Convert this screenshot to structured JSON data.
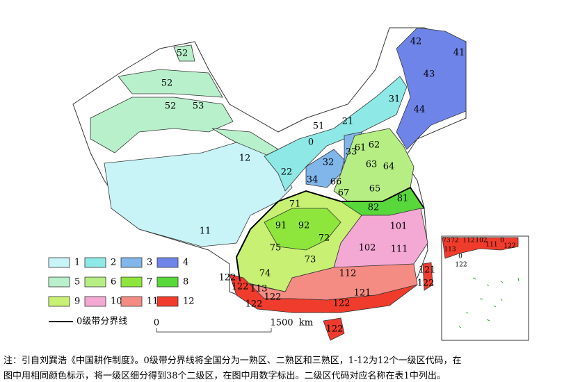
{
  "legend": {
    "items": [
      {
        "label": "1",
        "color": "#c8f4f8"
      },
      {
        "label": "2",
        "color": "#8ee8e6"
      },
      {
        "label": "3",
        "color": "#80b6ea"
      },
      {
        "label": "4",
        "color": "#6f84e8"
      },
      {
        "label": "5",
        "color": "#b8f0cc"
      },
      {
        "label": "6",
        "color": "#b6ee84"
      },
      {
        "label": "7",
        "color": "#8ee63c"
      },
      {
        "label": "8",
        "color": "#58d83a"
      },
      {
        "label": "9",
        "color": "#c8f072"
      },
      {
        "label": "10",
        "color": "#f4a8d4"
      },
      {
        "label": "11",
        "color": "#f48c84"
      },
      {
        "label": "12",
        "color": "#f03c2c"
      }
    ],
    "boundary_label": "0级带分界线"
  },
  "map_labels": [
    "52",
    "52",
    "53",
    "52",
    "12",
    "11",
    "22",
    "21",
    "0",
    "51",
    "31",
    "42",
    "41",
    "43",
    "44",
    "32",
    "33",
    "61",
    "62",
    "63",
    "64",
    "34",
    "66",
    "67",
    "65",
    "81",
    "82",
    "71",
    "91",
    "92",
    "72",
    "75",
    "73",
    "74",
    "101",
    "102",
    "111",
    "112",
    "121",
    "122",
    "121",
    "122",
    "122",
    "113",
    "122",
    "122",
    "122",
    "122"
  ],
  "inset_labels": [
    "73",
    "72",
    "112",
    "102",
    "111",
    "0",
    "122",
    "113",
    "0",
    "122"
  ],
  "scale_bar": {
    "start": "0",
    "end": "1500",
    "unit": "km"
  },
  "caption": [
    "注：引自刘巽浩《中国耕作制度》。0级带分界线将全国分为一熟区、二熟区和三熟区，1-12为12个一级区代码，在",
    "图中用相同颜色标示，将一级区细分得到38个二级区，在图中用数字标出。二级区代码对应名称在表1中列出。"
  ]
}
